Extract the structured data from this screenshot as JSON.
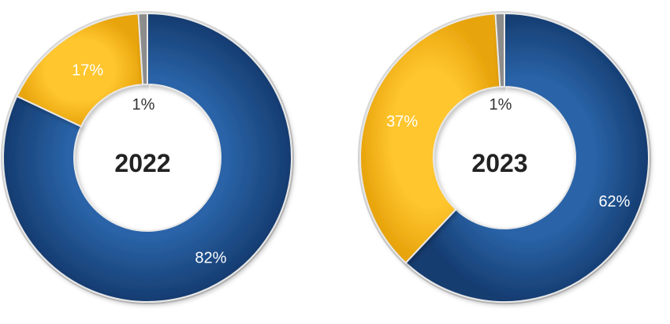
{
  "chart_data": [
    {
      "type": "pie",
      "center_label": "2022",
      "slices": [
        {
          "value": 82,
          "label": "82%",
          "color": "#1F4E8C",
          "label_color": "#ffffff"
        },
        {
          "value": 17,
          "label": "17%",
          "color": "#FBBA1A",
          "label_color": "#ffffff"
        },
        {
          "value": 1,
          "label": "1%",
          "color": "#8C8C8C",
          "label_color": "#333333"
        }
      ]
    },
    {
      "type": "pie",
      "center_label": "2023",
      "slices": [
        {
          "value": 62,
          "label": "62%",
          "color": "#1F4E8C",
          "label_color": "#ffffff"
        },
        {
          "value": 37,
          "label": "37%",
          "color": "#FBBA1A",
          "label_color": "#ffffff"
        },
        {
          "value": 1,
          "label": "1%",
          "color": "#8C8C8C",
          "label_color": "#333333"
        }
      ]
    }
  ]
}
